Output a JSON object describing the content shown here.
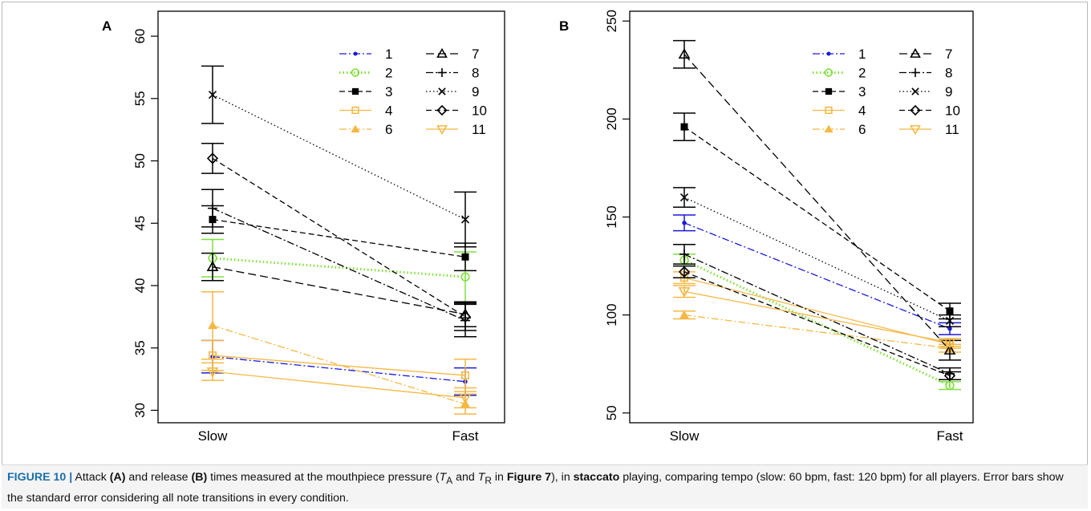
{
  "chart_data": [
    {
      "type": "line",
      "panel_label": "A",
      "categories": [
        "Slow",
        "Fast"
      ],
      "ylim": [
        29,
        62
      ],
      "yticks": [
        "30",
        "35",
        "40",
        "45",
        "50",
        "55",
        "60"
      ],
      "legend_placement": "top-right",
      "series": [
        {
          "name": "1",
          "color": "#1a1adb",
          "marker": "dot",
          "dash": "dashdot",
          "values": [
            34.3,
            32.3
          ],
          "errors": [
            1.3,
            1.1
          ]
        },
        {
          "name": "2",
          "color": "#7ee03c",
          "marker": "circle-open",
          "dash": "dotted-thick",
          "values": [
            42.2,
            40.7
          ],
          "errors": [
            1.5,
            2.0
          ]
        },
        {
          "name": "3",
          "color": "#000000",
          "marker": "square-filled",
          "dash": "dashed",
          "values": [
            45.3,
            42.3
          ],
          "errors": [
            1.1,
            1.1
          ]
        },
        {
          "name": "4",
          "color": "#f5b844",
          "marker": "square-open",
          "dash": "solid",
          "values": [
            34.4,
            32.8
          ],
          "errors": [
            1.2,
            1.3
          ]
        },
        {
          "name": "6",
          "color": "#f5b844",
          "marker": "triangle-filled",
          "dash": "dashdot",
          "values": [
            36.8,
            30.5
          ],
          "errors": [
            2.7,
            0.8
          ]
        },
        {
          "name": "7",
          "color": "#000000",
          "marker": "triangle-open",
          "dash": "longdash",
          "values": [
            41.5,
            37.7
          ],
          "errors": [
            1.1,
            1.0
          ]
        },
        {
          "name": "8",
          "color": "#000000",
          "marker": "plus",
          "dash": "dashdot",
          "values": [
            46.2,
            37.2
          ],
          "errors": [
            1.5,
            1.3
          ]
        },
        {
          "name": "9",
          "color": "#000000",
          "marker": "cross",
          "dash": "dotted",
          "values": [
            55.3,
            45.3
          ],
          "errors": [
            2.3,
            2.2
          ]
        },
        {
          "name": "10",
          "color": "#000000",
          "marker": "diamond-open",
          "dash": "dashed",
          "values": [
            50.2,
            37.5
          ],
          "errors": [
            1.2,
            1.1
          ]
        },
        {
          "name": "11",
          "color": "#f5b844",
          "marker": "triangle-down-open",
          "dash": "solid",
          "values": [
            33.1,
            31.0
          ],
          "errors": [
            0.7,
            0.8
          ]
        }
      ]
    },
    {
      "type": "line",
      "panel_label": "B",
      "categories": [
        "Slow",
        "Fast"
      ],
      "ylim": [
        45,
        255
      ],
      "yticks": [
        "50",
        "100",
        "150",
        "200",
        "250"
      ],
      "legend_placement": "top-right",
      "series": [
        {
          "name": "1",
          "color": "#1a1adb",
          "marker": "dot",
          "dash": "dashdot",
          "values": [
            147,
            93
          ],
          "errors": [
            4,
            3
          ]
        },
        {
          "name": "2",
          "color": "#7ee03c",
          "marker": "circle-open",
          "dash": "dotted-thick",
          "values": [
            128,
            64
          ],
          "errors": [
            3,
            2
          ]
        },
        {
          "name": "3",
          "color": "#000000",
          "marker": "square-filled",
          "dash": "dashed",
          "values": [
            196,
            102
          ],
          "errors": [
            7,
            4
          ]
        },
        {
          "name": "4",
          "color": "#f5b844",
          "marker": "square-open",
          "dash": "solid",
          "values": [
            119,
            85
          ],
          "errors": [
            3,
            2
          ]
        },
        {
          "name": "6",
          "color": "#f5b844",
          "marker": "triangle-filled",
          "dash": "dashdot",
          "values": [
            100,
            83
          ],
          "errors": [
            2,
            2
          ]
        },
        {
          "name": "7",
          "color": "#000000",
          "marker": "triangle-open",
          "dash": "longdash",
          "values": [
            233,
            82
          ],
          "errors": [
            7,
            5
          ]
        },
        {
          "name": "8",
          "color": "#000000",
          "marker": "plus",
          "dash": "dashdot",
          "values": [
            131,
            70
          ],
          "errors": [
            5,
            3
          ]
        },
        {
          "name": "9",
          "color": "#000000",
          "marker": "cross",
          "dash": "dotted",
          "values": [
            160,
            97
          ],
          "errors": [
            5,
            3
          ]
        },
        {
          "name": "10",
          "color": "#000000",
          "marker": "diamond-open",
          "dash": "dashed",
          "values": [
            122,
            69
          ],
          "errors": [
            3,
            2
          ]
        },
        {
          "name": "11",
          "color": "#f5b844",
          "marker": "triangle-down-open",
          "dash": "solid",
          "values": [
            112,
            86
          ],
          "errors": [
            3,
            2
          ]
        }
      ]
    }
  ],
  "caption": {
    "figure_label": "FIGURE 10 |",
    "text_1": " Attack ",
    "bold_a": "(A)",
    "text_2": " and release ",
    "bold_b": "(B)",
    "text_3": " times measured at the mouthpiece pressure (",
    "ta_main": "T",
    "ta_sub": "A",
    "text_4": " and ",
    "tr_main": "T",
    "tr_sub": "R",
    "text_5": " in ",
    "bold_fig7": "Figure 7",
    "text_6": "), in ",
    "bold_staccato": "staccato",
    "text_7": " playing, comparing tempo (slow: 60 bpm, fast: 120 bpm) for all players. Error bars show the standard error considering all note transitions in every condition."
  }
}
